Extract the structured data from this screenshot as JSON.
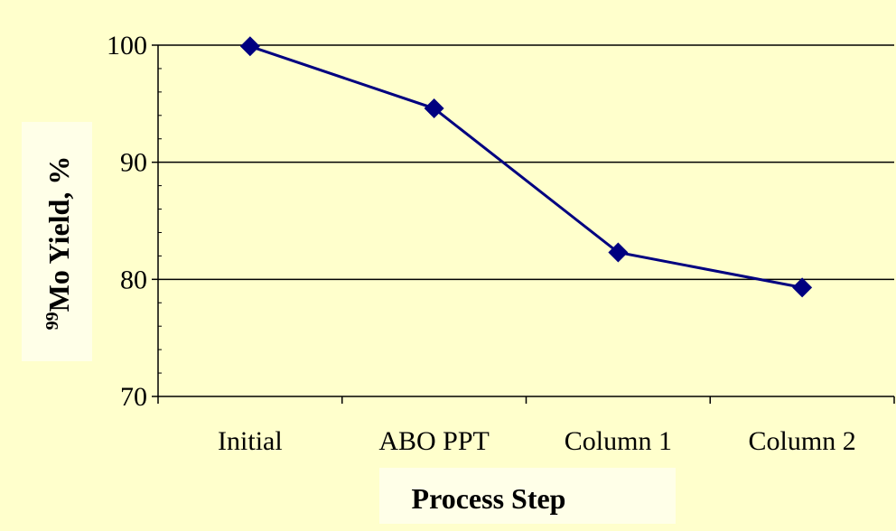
{
  "chart_data": {
    "type": "line",
    "categories": [
      "Initial",
      "ABO PPT",
      "Column 1",
      "Column 2"
    ],
    "series": [
      {
        "values": [
          99.9,
          94.6,
          82.3,
          79.3
        ]
      }
    ],
    "xlabel": "Process Step",
    "ylabel_sup": "99",
    "ylabel": "Mo Yield, %",
    "ylim": [
      70,
      100
    ],
    "yticks": [
      70,
      80,
      90,
      100
    ],
    "grid": true,
    "legend": "none",
    "marker": "diamond",
    "colors": {
      "background": "#ffffcc",
      "series": "#000080",
      "grid": "#000000",
      "label_box": "#ffffe8"
    }
  }
}
